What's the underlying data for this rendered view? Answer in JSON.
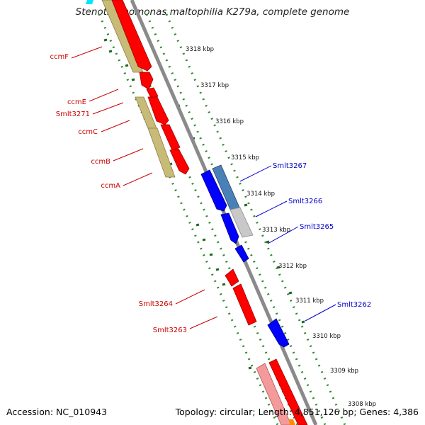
{
  "title": "Stenotrophomonas maltophilia K279a, complete genome",
  "footer": {
    "accession": "Accession: NC_010943",
    "topology": "Topology: circular; Length: 4,851,126 bp; Genes: 4,386"
  },
  "scale_ticks": [
    "3318 kbp",
    "3317 kbp",
    "3316 kbp",
    "3315 kbp",
    "3314 kbp",
    "3313 kbp",
    "3312 kbp",
    "3311 kbp",
    "3310 kbp",
    "3309 kbp",
    "3308 kbp"
  ],
  "left_labels": [
    "ccmF",
    "ccmE",
    "Smlt3271",
    "ccmC",
    "ccmB",
    "ccmA",
    "Smlt3264",
    "Smlt3263"
  ],
  "right_labels": [
    "Smlt3267",
    "Smlt3266",
    "Smlt3265",
    "Smlt3262"
  ],
  "colors": {
    "forward_gene": "#ff0000",
    "forward_gene_light": "#f59a9a",
    "reverse_gene": "#0000ff",
    "reverse_gene_steel": "#4a80b8",
    "gray_gene": "#c8c8c8",
    "olive_gene": "#c8bb78",
    "backbone": "#8a8a8a",
    "dotted_track": "#2e8b2e",
    "left_label": "#cc0000",
    "right_label": "#0000cc"
  }
}
